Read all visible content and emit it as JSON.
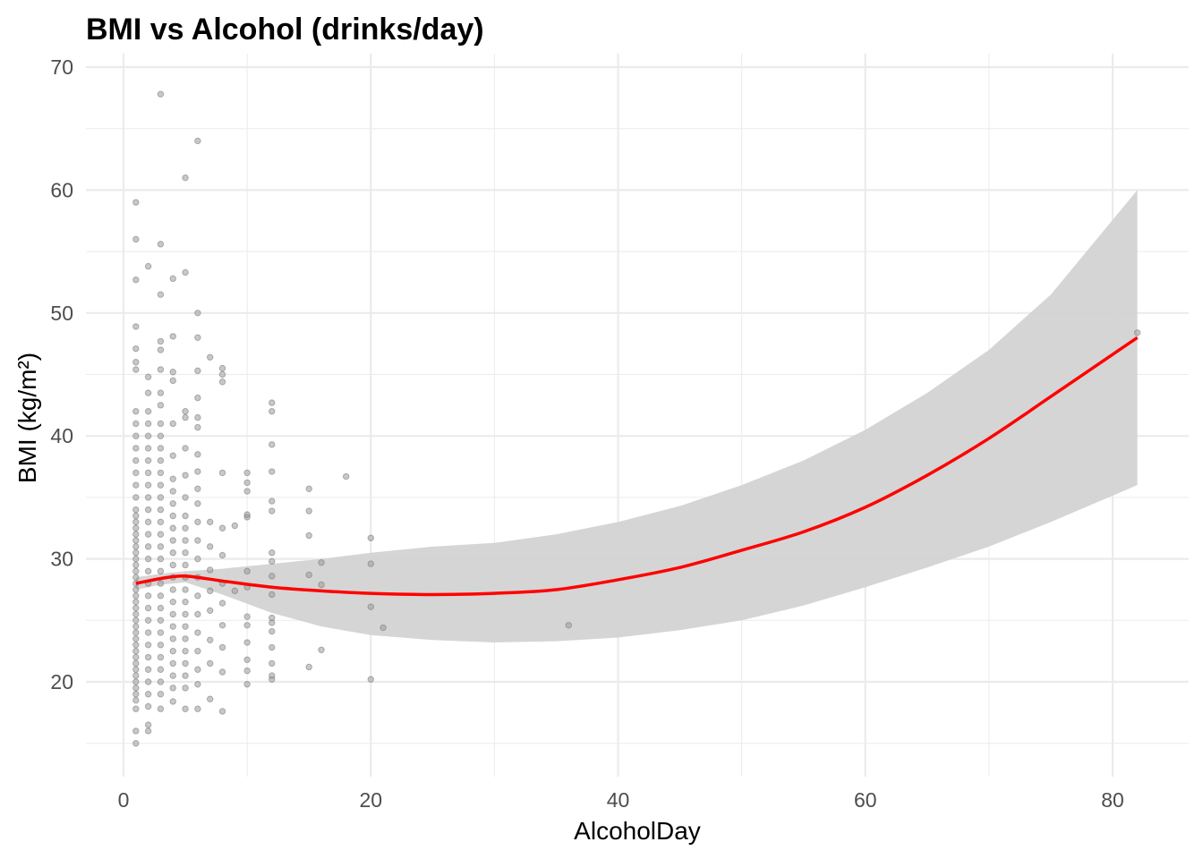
{
  "chart_data": {
    "type": "scatter",
    "title": "BMI vs Alcohol (drinks/day)",
    "xlabel": "AlcoholDay",
    "ylabel": "BMI (kg/m²)",
    "xlim": [
      -3,
      86
    ],
    "ylim": [
      12.5,
      71
    ],
    "xticks": [
      0,
      20,
      40,
      60,
      80
    ],
    "yticks": [
      20,
      30,
      40,
      50,
      60,
      70
    ],
    "grid": true,
    "colors": {
      "points": "#595959",
      "smooth": "#ff0000",
      "ribbon": "#d3d3d3",
      "grid": "#ebebeb"
    },
    "scatter_columns": [
      {
        "x": 1,
        "y": [
          15,
          16,
          17.8,
          18.5,
          19,
          19.5,
          20,
          20.5,
          21,
          21.5,
          22,
          22.5,
          23,
          23.5,
          24,
          24.5,
          25,
          25.5,
          26,
          26.5,
          27,
          27.5,
          28,
          28.5,
          29,
          29.5,
          30,
          30.5,
          31,
          31.5,
          32,
          32.5,
          33,
          33.5,
          34,
          35,
          36,
          37,
          38,
          39,
          40,
          41,
          42,
          45.4,
          46,
          47.1,
          48.9,
          52.7,
          56,
          59
        ]
      },
      {
        "x": 2,
        "y": [
          16,
          16.5,
          18,
          19,
          20,
          21,
          22,
          23,
          24,
          25,
          26,
          27,
          28,
          29,
          30,
          31,
          32,
          33,
          34,
          35,
          36,
          37,
          38,
          39,
          40,
          41,
          42,
          43.5,
          44.8,
          53.8
        ]
      },
      {
        "x": 3,
        "y": [
          17.8,
          19,
          20,
          21,
          22,
          23,
          24,
          25,
          26,
          27,
          28,
          29,
          30,
          31,
          32,
          33,
          34,
          35,
          36,
          37,
          38,
          39,
          40,
          41,
          42.5,
          43.5,
          45.4,
          47,
          47.7,
          51.5,
          55.6,
          67.8
        ]
      },
      {
        "x": 4,
        "y": [
          18.4,
          19.5,
          20.5,
          21.5,
          22.5,
          23.5,
          24.5,
          25.5,
          26.5,
          27.5,
          28.5,
          29.5,
          30.5,
          31.5,
          32.5,
          33.5,
          34.5,
          35.5,
          36.5,
          38.4,
          41,
          44.5,
          45.2,
          48.1,
          52.8
        ]
      },
      {
        "x": 5,
        "y": [
          17.8,
          19.5,
          20.5,
          21.5,
          22.5,
          23.5,
          24.5,
          25.5,
          26.5,
          27.5,
          28.5,
          29.5,
          30.5,
          31.5,
          32.5,
          33.5,
          35,
          36.8,
          39,
          41.5,
          42,
          53.3,
          61
        ]
      },
      {
        "x": 6,
        "y": [
          17.8,
          19.8,
          21,
          22.5,
          24,
          25.5,
          27,
          28.5,
          30,
          31.5,
          33,
          34.5,
          35.7,
          37.1,
          38.5,
          40.7,
          41.5,
          43.1,
          45.3,
          48,
          50,
          64
        ]
      },
      {
        "x": 7,
        "y": [
          18.6,
          21.5,
          23.4,
          25.8,
          27.4,
          29.1,
          31,
          33,
          46.4
        ]
      },
      {
        "x": 8,
        "y": [
          17.6,
          20.8,
          22.8,
          24.6,
          26.4,
          28,
          30.3,
          32.5,
          37,
          44.4,
          45,
          45.5
        ]
      },
      {
        "x": 9,
        "y": [
          27.4,
          32.7
        ]
      },
      {
        "x": 10,
        "y": [
          19.8,
          20.9,
          21.8,
          23.2,
          24.6,
          25.3,
          27.7,
          29,
          33.4,
          33.6,
          35.5,
          36.2,
          37
        ]
      },
      {
        "x": 12,
        "y": [
          20.2,
          20.5,
          21.5,
          22.8,
          24.1,
          24.8,
          25.2,
          27.1,
          28.6,
          29.8,
          30.5,
          33.9,
          34.7,
          37.1,
          39.3,
          42,
          42.7
        ]
      },
      {
        "x": 15,
        "y": [
          21.2,
          28.7,
          31.9,
          33.9,
          35.7
        ]
      },
      {
        "x": 16,
        "y": [
          22.6,
          27.9,
          29.7
        ]
      },
      {
        "x": 18,
        "y": [
          36.7
        ]
      },
      {
        "x": 20,
        "y": [
          20.2,
          26.1,
          29.6,
          31.7
        ]
      },
      {
        "x": 21,
        "y": [
          24.4
        ]
      },
      {
        "x": 36,
        "y": [
          24.6
        ]
      },
      {
        "x": 82,
        "y": [
          48.4
        ]
      }
    ],
    "smooth": {
      "x": [
        1,
        3,
        5,
        8,
        12,
        16,
        20,
        25,
        30,
        35,
        40,
        45,
        50,
        55,
        60,
        65,
        70,
        75,
        82
      ],
      "y": [
        28,
        28.4,
        28.6,
        28.2,
        27.7,
        27.4,
        27.2,
        27.1,
        27.2,
        27.5,
        28.3,
        29.3,
        30.7,
        32.2,
        34.2,
        36.8,
        39.8,
        43.2,
        48
      ],
      "upper": [
        28.5,
        28.8,
        29,
        29.2,
        29.6,
        30,
        30.5,
        31,
        31.3,
        32,
        33,
        34.3,
        36,
        38,
        40.5,
        43.5,
        47,
        51.5,
        60
      ],
      "lower": [
        27.5,
        27.9,
        28.1,
        27.1,
        25.6,
        24.5,
        23.8,
        23.4,
        23.2,
        23.3,
        23.6,
        24.2,
        25,
        26.2,
        27.7,
        29.3,
        31,
        33,
        36
      ]
    }
  }
}
